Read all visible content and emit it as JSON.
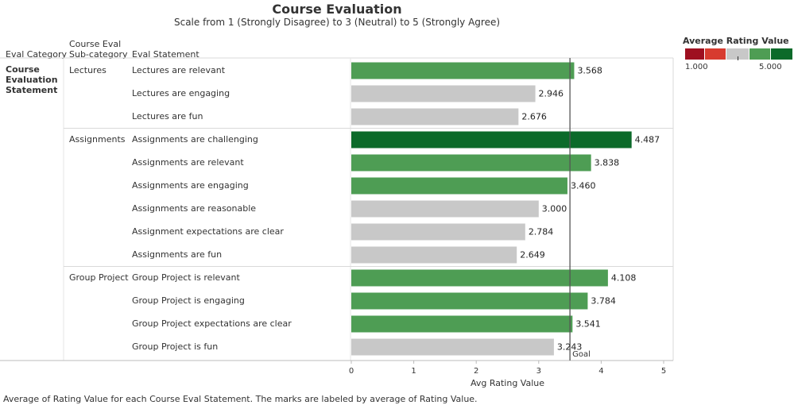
{
  "chart_data": {
    "type": "bar",
    "title": "Course Evaluation",
    "subtitle": "Scale from 1 (Strongly Disagree) to 3 (Neutral) to 5 (Strongly Agree)",
    "headers": {
      "category": "Eval Category",
      "subcategory_line1": "Course Eval",
      "subcategory_line2": "Sub-category",
      "statement": "Eval Statement"
    },
    "category": "Course Evaluation Statement",
    "groups": [
      {
        "name": "Lectures",
        "items": [
          {
            "label": "Lectures are relevant",
            "value": 3.568
          },
          {
            "label": "Lectures are engaging",
            "value": 2.946
          },
          {
            "label": "Lectures are fun",
            "value": 2.676
          }
        ]
      },
      {
        "name": "Assignments",
        "items": [
          {
            "label": "Assignments are challenging",
            "value": 4.487
          },
          {
            "label": "Assignments are relevant",
            "value": 3.838
          },
          {
            "label": "Assignments are engaging",
            "value": 3.46
          },
          {
            "label": "Assignments are reasonable",
            "value": 3.0
          },
          {
            "label": "Assignment expectations are clear",
            "value": 2.784
          },
          {
            "label": "Assignments are fun",
            "value": 2.649
          }
        ]
      },
      {
        "name": "Group Project",
        "items": [
          {
            "label": "Group Project is relevant",
            "value": 4.108
          },
          {
            "label": "Group Project is engaging",
            "value": 3.784
          },
          {
            "label": "Group Project expectations are clear",
            "value": 3.541
          },
          {
            "label": "Group Project is fun",
            "value": 3.243
          }
        ]
      }
    ],
    "xlabel": "Avg Rating Value",
    "xlim": [
      0,
      5
    ],
    "xticks": [
      "0",
      "1",
      "2",
      "3",
      "4",
      "5"
    ],
    "reference_line": {
      "value": 3.5,
      "label": "Goal"
    },
    "color_legend": {
      "title": "Average Rating Value",
      "min_label": "1.000",
      "max_label": "5.000",
      "colors": [
        "#9e0f20",
        "#d73b2f",
        "#c8c8c8",
        "#4e9d54",
        "#0c6a2a"
      ]
    },
    "bar_colors": {
      "dark_green": "#0c6a2a",
      "green": "#4e9d54",
      "grey": "#c8c8c8"
    },
    "caption": "Average of Rating Value for each Course Eval Statement.  The marks are labeled by average of Rating Value."
  }
}
